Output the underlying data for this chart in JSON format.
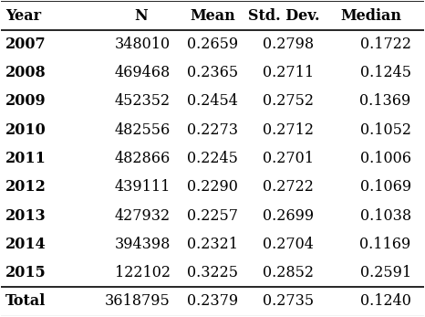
{
  "columns": [
    "Year",
    "N",
    "Mean",
    "Std. Dev.",
    "Median"
  ],
  "rows": [
    [
      "2007",
      "348010",
      "0.2659",
      "0.2798",
      "0.1722"
    ],
    [
      "2008",
      "469468",
      "0.2365",
      "0.2711",
      "0.1245"
    ],
    [
      "2009",
      "452352",
      "0.2454",
      "0.2752",
      "0.1369"
    ],
    [
      "2010",
      "482556",
      "0.2273",
      "0.2712",
      "0.1052"
    ],
    [
      "2011",
      "482866",
      "0.2245",
      "0.2701",
      "0.1006"
    ],
    [
      "2012",
      "439111",
      "0.2290",
      "0.2722",
      "0.1069"
    ],
    [
      "2013",
      "427932",
      "0.2257",
      "0.2699",
      "0.1038"
    ],
    [
      "2014",
      "394398",
      "0.2321",
      "0.2704",
      "0.1169"
    ],
    [
      "2015",
      "122102",
      "0.3225",
      "0.2852",
      "0.2591"
    ]
  ],
  "total_row": [
    "Total",
    "3618795",
    "0.2379",
    "0.2735",
    "0.1240"
  ],
  "col_aligns": [
    "left",
    "right",
    "right",
    "right",
    "right"
  ],
  "header_bold": true,
  "year_bold": true,
  "total_bold": true,
  "bg_color": "white",
  "line_color": "black",
  "font_size": 11.5,
  "header_font_size": 11.5
}
